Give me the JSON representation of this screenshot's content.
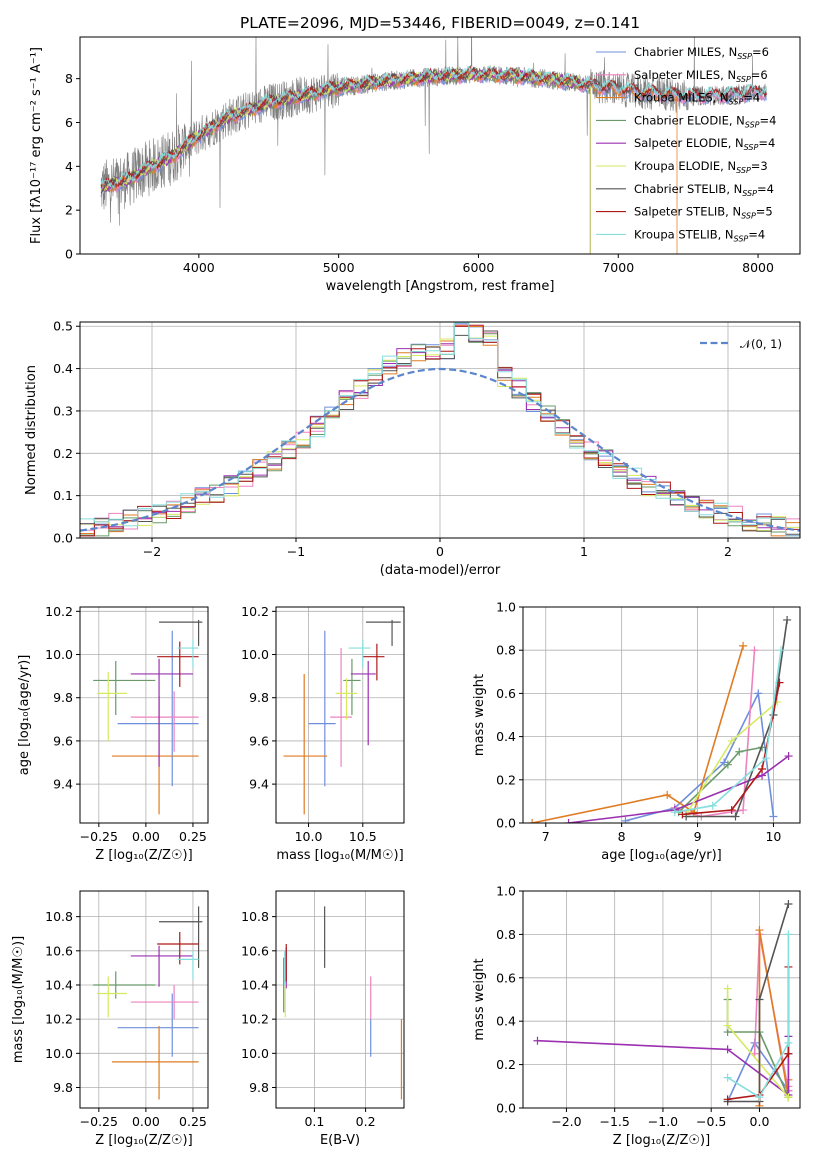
{
  "figure_title": "PLATE=2096, MJD=53446, FIBERID=0049, z=0.141",
  "colors": {
    "chabrier_miles": "#6f8fdc",
    "salpeter_miles": "#ee82c0",
    "kroupa_miles": "#e07b22",
    "chabrier_elodie": "#6a9a6a",
    "salpeter_elodie": "#9b30b0",
    "kroupa_elodie": "#d6ea60",
    "chabrier_stelib": "#555555",
    "salpeter_stelib": "#b01818",
    "kroupa_stelib": "#86dede",
    "gauss": "#5b86cc",
    "grey": "#7f7f7f"
  },
  "chart_data": [
    {
      "id": "spectrum",
      "type": "line",
      "xlabel": "wavelength [Angstrom, rest frame]",
      "ylabel": "Flux [fλ10⁻¹⁷ erg cm⁻² s⁻¹ A⁻¹]",
      "xlim": [
        3150,
        8300
      ],
      "ylim": [
        0,
        9.9
      ],
      "xticks": [
        4000,
        5000,
        6000,
        7000,
        8000
      ],
      "yticks": [
        0,
        2,
        4,
        6,
        8
      ],
      "legend_position": "right",
      "continuum": {
        "x": [
          3300,
          3500,
          3600,
          3800,
          4000,
          4200,
          4500,
          4800,
          5000,
          5300,
          5600,
          6000,
          6300,
          6600,
          6900,
          7200,
          7500,
          7800,
          8050
        ],
        "y": [
          3.0,
          3.4,
          3.8,
          4.4,
          5.4,
          6.2,
          6.9,
          7.3,
          7.6,
          7.85,
          8.05,
          8.2,
          8.1,
          7.9,
          7.6,
          7.35,
          7.2,
          7.25,
          7.4
        ]
      },
      "legend": [
        {
          "label": "Chabrier MILES, N",
          "sub": "SSP",
          "tail": "=6",
          "color": "#6f8fdc"
        },
        {
          "label": "Salpeter MILES, N",
          "sub": "SSP",
          "tail": "=6",
          "color": "#ee82c0"
        },
        {
          "label": "Kroupa MILES, N",
          "sub": "SSP",
          "tail": "=4",
          "color": "#e07b22"
        },
        {
          "label": "Chabrier ELODIE, N",
          "sub": "SSP",
          "tail": "=4",
          "color": "#6a9a6a"
        },
        {
          "label": "Salpeter ELODIE, N",
          "sub": "SSP",
          "tail": "=4",
          "color": "#9b30b0"
        },
        {
          "label": "Kroupa ELODIE, N",
          "sub": "SSP",
          "tail": "=3",
          "color": "#d6ea60"
        },
        {
          "label": "Chabrier STELIB, N",
          "sub": "SSP",
          "tail": "=4",
          "color": "#555555"
        },
        {
          "label": "Salpeter STELIB, N",
          "sub": "SSP",
          "tail": "=5",
          "color": "#b01818"
        },
        {
          "label": "Kroupa STELIB, N",
          "sub": "SSP",
          "tail": "=4",
          "color": "#86dede"
        }
      ]
    },
    {
      "id": "residuals",
      "type": "line",
      "xlabel": "(data-model)/error",
      "ylabel": "Normed distribution",
      "xlim": [
        -2.5,
        2.5
      ],
      "ylim": [
        0,
        0.51
      ],
      "xticks": [
        -2,
        -1,
        0,
        1,
        2
      ],
      "yticks": [
        0.0,
        0.1,
        0.2,
        0.3,
        0.4,
        0.5
      ],
      "grid": true,
      "legend_position": "top-right",
      "legend": [
        {
          "label": "𝒩(0, 1)",
          "color": "#5b86cc"
        }
      ],
      "bin_width": 0.1
    },
    {
      "id": "age_vs_Z",
      "type": "scatter",
      "xlabel": "Z [log₁₀(Z/Z☉)]",
      "ylabel": "age  [log₁₀(age/yr)]",
      "xlim": [
        -0.35,
        0.33
      ],
      "ylim": [
        9.22,
        10.22
      ],
      "xticks": [
        -0.25,
        0.0,
        0.25
      ],
      "yticks": [
        9.4,
        9.6,
        9.8,
        10.0,
        10.2
      ],
      "grid": true,
      "points": [
        {
          "c": "chabrier_miles",
          "x": 0.14,
          "y": 9.68,
          "xe": [
            -0.15,
            0.28
          ],
          "ye": [
            9.39,
            10.11
          ]
        },
        {
          "c": "salpeter_miles",
          "x": 0.15,
          "y": 9.71,
          "xe": [
            -0.08,
            0.28
          ],
          "ye": [
            9.55,
            9.83
          ]
        },
        {
          "c": "kroupa_miles",
          "x": 0.07,
          "y": 9.53,
          "xe": [
            -0.18,
            0.28
          ],
          "ye": [
            9.26,
            9.81
          ]
        },
        {
          "c": "chabrier_elodie",
          "x": -0.16,
          "y": 9.88,
          "xe": [
            -0.28,
            0.05
          ],
          "ye": [
            9.72,
            9.97
          ]
        },
        {
          "c": "salpeter_elodie",
          "x": 0.07,
          "y": 9.91,
          "xe": [
            -0.08,
            0.25
          ],
          "ye": [
            9.48,
            9.98
          ]
        },
        {
          "c": "kroupa_elodie",
          "x": -0.2,
          "y": 9.82,
          "xe": [
            -0.26,
            -0.1
          ],
          "ye": [
            9.6,
            9.92
          ]
        },
        {
          "c": "chabrier_stelib",
          "x": 0.28,
          "y": 10.15,
          "xe": [
            0.07,
            0.3
          ],
          "ye": [
            10.04,
            10.16
          ]
        },
        {
          "c": "salpeter_stelib",
          "x": 0.18,
          "y": 9.99,
          "xe": [
            0.06,
            0.28
          ],
          "ye": [
            9.85,
            10.06
          ]
        },
        {
          "c": "kroupa_stelib",
          "x": 0.25,
          "y": 10.03,
          "xe": [
            0.17,
            0.28
          ],
          "ye": [
            9.94,
            10.07
          ]
        }
      ]
    },
    {
      "id": "age_vs_mass",
      "type": "scatter",
      "xlabel": "mass [log₁₀(M/M☉)]",
      "ylabel": "",
      "xlim": [
        9.7,
        10.88
      ],
      "ylim": [
        9.22,
        10.22
      ],
      "xticks": [
        10.0,
        10.5
      ],
      "yticks": [
        9.4,
        9.6,
        9.8,
        10.0,
        10.2
      ],
      "grid": true,
      "points": [
        {
          "c": "chabrier_miles",
          "x": 10.15,
          "y": 9.68,
          "xe": [
            10.0,
            10.25
          ],
          "ye": [
            9.39,
            10.11
          ]
        },
        {
          "c": "salpeter_miles",
          "x": 10.3,
          "y": 9.71,
          "xe": [
            10.2,
            10.4
          ],
          "ye": [
            9.48,
            10.03
          ]
        },
        {
          "c": "kroupa_miles",
          "x": 9.96,
          "y": 9.53,
          "xe": [
            9.77,
            10.17
          ],
          "ye": [
            9.26,
            9.91
          ]
        },
        {
          "c": "chabrier_elodie",
          "x": 10.4,
          "y": 9.88,
          "xe": [
            10.32,
            10.48
          ],
          "ye": [
            9.72,
            9.98
          ]
        },
        {
          "c": "salpeter_elodie",
          "x": 10.55,
          "y": 9.91,
          "xe": [
            10.39,
            10.62
          ],
          "ye": [
            9.58,
            9.97
          ]
        },
        {
          "c": "kroupa_elodie",
          "x": 10.35,
          "y": 9.82,
          "xe": [
            10.25,
            10.45
          ],
          "ye": [
            9.7,
            9.89
          ]
        },
        {
          "c": "chabrier_stelib",
          "x": 10.77,
          "y": 10.15,
          "xe": [
            10.53,
            10.85
          ],
          "ye": [
            10.04,
            10.16
          ]
        },
        {
          "c": "salpeter_stelib",
          "x": 10.63,
          "y": 9.99,
          "xe": [
            10.5,
            10.7
          ],
          "ye": [
            9.88,
            10.05
          ]
        },
        {
          "c": "kroupa_stelib",
          "x": 10.5,
          "y": 10.03,
          "xe": [
            10.37,
            10.57
          ],
          "ye": [
            9.94,
            10.07
          ]
        }
      ]
    },
    {
      "id": "mass_weight_vs_age",
      "type": "line",
      "xlabel": "age  [log₁₀(age/yr)]",
      "ylabel": "mass weight",
      "xlim": [
        6.7,
        10.35
      ],
      "ylim": [
        0,
        1.0
      ],
      "xticks": [
        7,
        8,
        9,
        10
      ],
      "yticks": [
        0.0,
        0.2,
        0.4,
        0.6,
        0.8,
        1.0
      ],
      "grid": true,
      "series": [
        {
          "c": "chabrier_miles",
          "x": [
            8.05,
            8.7,
            9.35,
            9.8,
            10.0
          ],
          "y": [
            0.01,
            0.07,
            0.28,
            0.6,
            0.03
          ]
        },
        {
          "c": "salpeter_miles",
          "x": [
            8.7,
            9.05,
            9.6,
            9.75
          ],
          "y": [
            0.07,
            0.03,
            0.06,
            0.8
          ]
        },
        {
          "c": "kroupa_miles",
          "x": [
            6.82,
            8.6,
            8.95,
            9.6
          ],
          "y": [
            0.0,
            0.13,
            0.05,
            0.82
          ]
        },
        {
          "c": "chabrier_elodie",
          "x": [
            8.75,
            9.4,
            9.55,
            9.85
          ],
          "y": [
            0.05,
            0.27,
            0.33,
            0.35
          ]
        },
        {
          "c": "salpeter_elodie",
          "x": [
            7.3,
            8.7,
            9.85,
            10.2
          ],
          "y": [
            0.0,
            0.06,
            0.22,
            0.31
          ]
        },
        {
          "c": "kroupa_elodie",
          "x": [
            8.85,
            9.45,
            10.05
          ],
          "y": [
            0.04,
            0.38,
            0.56
          ]
        },
        {
          "c": "chabrier_stelib",
          "x": [
            8.85,
            9.5,
            10.0,
            10.18
          ],
          "y": [
            0.03,
            0.03,
            0.5,
            0.94
          ]
        },
        {
          "c": "salpeter_stelib",
          "x": [
            8.8,
            9.45,
            9.85,
            10.08
          ],
          "y": [
            0.04,
            0.06,
            0.25,
            0.65
          ]
        },
        {
          "c": "kroupa_stelib",
          "x": [
            8.7,
            9.2,
            9.9,
            10.1
          ],
          "y": [
            0.05,
            0.08,
            0.3,
            0.8
          ]
        }
      ]
    },
    {
      "id": "mass_vs_Z",
      "type": "scatter",
      "xlabel": "Z [log₁₀(Z/Z☉)]",
      "ylabel": "mass [log₁₀(M/M☉)]",
      "xlim": [
        -0.35,
        0.33
      ],
      "ylim": [
        9.68,
        10.95
      ],
      "xticks": [
        -0.25,
        0.0,
        0.25
      ],
      "yticks": [
        9.8,
        10.0,
        10.2,
        10.4,
        10.6,
        10.8
      ],
      "grid": true,
      "points": [
        {
          "c": "chabrier_miles",
          "x": 0.14,
          "y": 10.15,
          "xe": [
            -0.15,
            0.28
          ],
          "ye": [
            9.98,
            10.35
          ]
        },
        {
          "c": "salpeter_miles",
          "x": 0.15,
          "y": 10.3,
          "xe": [
            -0.08,
            0.28
          ],
          "ye": [
            10.2,
            10.4
          ]
        },
        {
          "c": "kroupa_miles",
          "x": 0.07,
          "y": 9.95,
          "xe": [
            -0.18,
            0.28
          ],
          "ye": [
            9.73,
            10.16
          ]
        },
        {
          "c": "chabrier_elodie",
          "x": -0.16,
          "y": 10.4,
          "xe": [
            -0.28,
            0.05
          ],
          "ye": [
            10.32,
            10.48
          ]
        },
        {
          "c": "salpeter_elodie",
          "x": 0.07,
          "y": 10.57,
          "xe": [
            -0.08,
            0.25
          ],
          "ye": [
            10.39,
            10.63
          ]
        },
        {
          "c": "kroupa_elodie",
          "x": -0.2,
          "y": 10.35,
          "xe": [
            -0.26,
            -0.1
          ],
          "ye": [
            10.21,
            10.45
          ]
        },
        {
          "c": "chabrier_stelib",
          "x": 0.28,
          "y": 10.77,
          "xe": [
            0.07,
            0.3
          ],
          "ye": [
            10.5,
            10.86
          ]
        },
        {
          "c": "salpeter_stelib",
          "x": 0.18,
          "y": 10.64,
          "xe": [
            0.06,
            0.28
          ],
          "ye": [
            10.52,
            10.71
          ]
        },
        {
          "c": "kroupa_stelib",
          "x": 0.25,
          "y": 10.55,
          "xe": [
            0.17,
            0.28
          ],
          "ye": [
            10.43,
            10.6
          ]
        }
      ]
    },
    {
      "id": "mass_vs_ebv",
      "type": "scatter",
      "xlabel": "E(B-V)",
      "ylabel": "",
      "xlim": [
        0.025,
        0.275
      ],
      "ylim": [
        9.68,
        10.95
      ],
      "xticks": [
        0.1,
        0.2
      ],
      "yticks": [
        9.8,
        10.0,
        10.2,
        10.4,
        10.6,
        10.8
      ],
      "grid": true,
      "points": [
        {
          "c": "chabrier_miles",
          "x": 0.21,
          "y": 10.15,
          "ye": [
            9.98,
            10.2
          ]
        },
        {
          "c": "salpeter_miles",
          "x": 0.21,
          "y": 10.3,
          "ye": [
            10.2,
            10.45
          ]
        },
        {
          "c": "kroupa_miles",
          "x": 0.27,
          "y": 9.95,
          "ye": [
            9.73,
            10.2
          ]
        },
        {
          "c": "chabrier_elodie",
          "x": 0.04,
          "y": 10.4,
          "ye": [
            10.24,
            10.56
          ]
        },
        {
          "c": "salpeter_elodie",
          "x": 0.045,
          "y": 10.5,
          "ye": [
            10.38,
            10.62
          ]
        },
        {
          "c": "kroupa_elodie",
          "x": 0.043,
          "y": 10.35,
          "ye": [
            10.21,
            10.45
          ]
        },
        {
          "c": "chabrier_stelib",
          "x": 0.12,
          "y": 10.77,
          "ye": [
            10.5,
            10.86
          ]
        },
        {
          "c": "salpeter_stelib",
          "x": 0.045,
          "y": 10.55,
          "ye": [
            10.42,
            10.64
          ]
        },
        {
          "c": "kroupa_stelib",
          "x": 0.042,
          "y": 10.5,
          "ye": [
            10.4,
            10.6
          ]
        }
      ]
    },
    {
      "id": "mass_weight_vs_Z",
      "type": "line",
      "xlabel": "Z [log₁₀(Z/Z☉)]",
      "ylabel": "mass weight",
      "xlim": [
        -2.45,
        0.42
      ],
      "ylim": [
        0,
        1.0
      ],
      "xticks": [
        -2.0,
        -1.5,
        -1.0,
        -0.5,
        0.0
      ],
      "yticks": [
        0.0,
        0.2,
        0.4,
        0.6,
        0.8,
        1.0
      ],
      "grid": true,
      "series": [
        {
          "c": "chabrier_miles",
          "x": [
            -0.33,
            -0.05,
            0.3,
            0.3
          ],
          "y": [
            0.03,
            0.3,
            0.08,
            0.25
          ]
        },
        {
          "c": "salpeter_miles",
          "x": [
            -0.05,
            0.0,
            0.3,
            0.3
          ],
          "y": [
            0.25,
            0.8,
            0.08,
            0.1
          ]
        },
        {
          "c": "kroupa_miles",
          "x": [
            0.0,
            0.0,
            0.3,
            0.3
          ],
          "y": [
            0.01,
            0.82,
            0.05,
            0.13
          ]
        },
        {
          "c": "chabrier_elodie",
          "x": [
            -0.33,
            -0.33,
            0.0,
            0.3
          ],
          "y": [
            0.5,
            0.35,
            0.35,
            0.05
          ]
        },
        {
          "c": "salpeter_elodie",
          "x": [
            -2.3,
            -0.33,
            0.3,
            0.3
          ],
          "y": [
            0.31,
            0.27,
            0.06,
            0.33
          ]
        },
        {
          "c": "kroupa_elodie",
          "x": [
            -0.33,
            -0.33,
            0.3
          ],
          "y": [
            0.55,
            0.38,
            0.05
          ]
        },
        {
          "c": "chabrier_stelib",
          "x": [
            -0.33,
            0.0,
            0.0,
            0.3
          ],
          "y": [
            0.03,
            0.03,
            0.5,
            0.94
          ]
        },
        {
          "c": "salpeter_stelib",
          "x": [
            -0.33,
            0.0,
            0.3,
            0.3
          ],
          "y": [
            0.04,
            0.06,
            0.25,
            0.65
          ]
        },
        {
          "c": "kroupa_stelib",
          "x": [
            -0.33,
            0.0,
            0.3,
            0.3
          ],
          "y": [
            0.14,
            0.05,
            0.3,
            0.8
          ]
        }
      ]
    }
  ]
}
